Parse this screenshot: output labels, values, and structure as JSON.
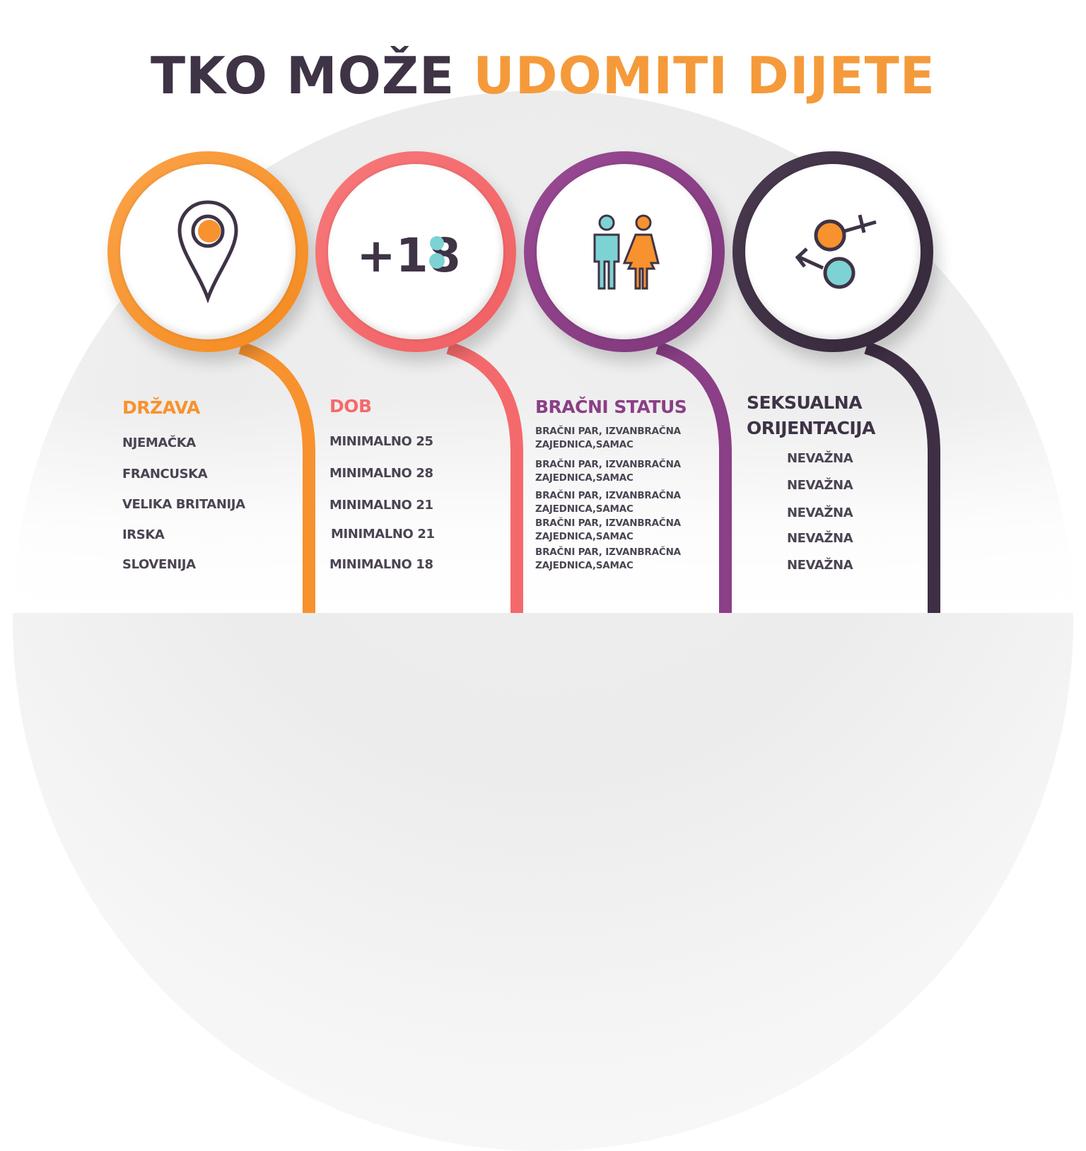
{
  "title": {
    "part1": "TKO MOŽE",
    "part2": "UDOMITI DIJETE"
  },
  "colors": {
    "orange": "#f7922e",
    "coral": "#f46a6c",
    "purple": "#8b3f86",
    "dark": "#3f2f45",
    "teal": "#7dd3d3",
    "text": "#4b4452"
  },
  "columns": [
    {
      "icon": "location-pin-icon",
      "heading": "DRŽAVA",
      "items": [
        "NJEMAČKA",
        "FRANCUSKA",
        "VELIKA BRITANIJA",
        "IRSKA",
        "SLOVENIJA"
      ]
    },
    {
      "icon_text": "+18",
      "heading": "DOB",
      "items": [
        "MINIMALNO 25",
        "MINIMALNO 28",
        "MINIMALNO 21",
        "MINIMALNO 21",
        "MINIMALNO 18"
      ]
    },
    {
      "icon": "man-woman-icon",
      "heading": "BRAČNI STATUS",
      "items": [
        [
          "BRAČNI PAR, IZVANBRAČNA",
          "ZAJEDNICA,SAMAC"
        ],
        [
          "BRAČNI PAR, IZVANBRAČNA",
          "ZAJEDNICA,SAMAC"
        ],
        [
          "BRAČNI PAR, IZVANBRAČNA",
          "ZAJEDNICA,SAMAC"
        ],
        [
          "BRAČNI PAR, IZVANBRAČNA",
          "ZAJEDNICA,SAMAC"
        ],
        [
          "BRAČNI PAR, IZVANBRAČNA",
          "ZAJEDNICA,SAMAC"
        ]
      ]
    },
    {
      "icon": "gender-symbols-icon",
      "heading_line1": "SEKSUALNA",
      "heading_line2": "ORIJENTACIJA",
      "items": [
        "NEVAŽNA",
        "NEVAŽNA",
        "NEVAŽNA",
        "NEVAŽNA",
        "NEVAŽNA"
      ]
    }
  ]
}
